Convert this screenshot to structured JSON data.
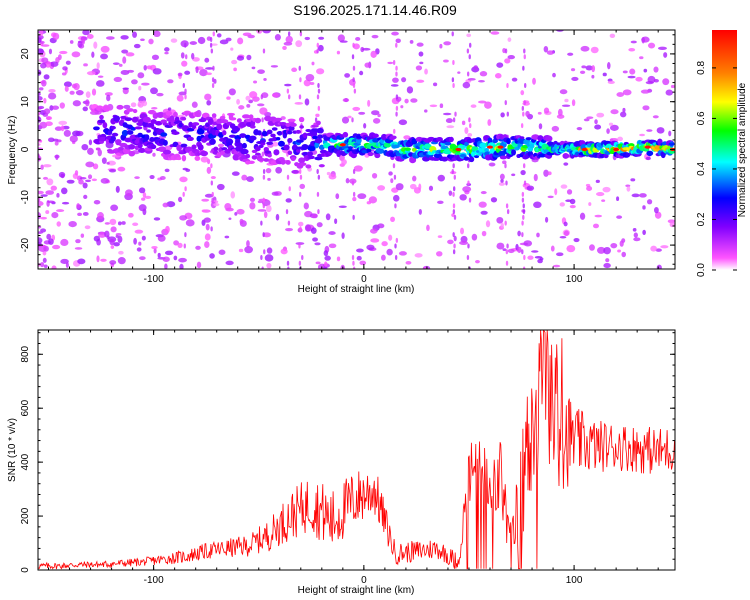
{
  "title": "S196.2025.171.14.46.R09",
  "chart_data": [
    {
      "type": "heatmap",
      "xlabel": "Height of straight line (km)",
      "ylabel": "Frequency (Hz)",
      "xlim": [
        -155,
        148
      ],
      "ylim": [
        -25,
        25
      ],
      "x_ticks": [
        -100,
        0,
        100
      ],
      "y_ticks": [
        -20,
        -10,
        0,
        10,
        20
      ],
      "colorbar": {
        "label": "Normalized spectral amplitude",
        "range": [
          0.0,
          0.95
        ],
        "ticks": [
          "0.0",
          "0.2",
          "0.4",
          "0.6",
          "0.8"
        ],
        "colors": [
          "#ffffff",
          "#ff55ff",
          "#8000ff",
          "#0000ff",
          "#00ffff",
          "#00ff00",
          "#ffff00",
          "#ff8000",
          "#ff0000"
        ]
      },
      "ridge": [
        {
          "x": -128,
          "f": 4,
          "amp": 0.35
        },
        {
          "x": -115,
          "f": 4,
          "amp": 0.45
        },
        {
          "x": -100,
          "f": 3,
          "amp": 0.4
        },
        {
          "x": -85,
          "f": 3,
          "amp": 0.45
        },
        {
          "x": -70,
          "f": 3,
          "amp": 0.4
        },
        {
          "x": -55,
          "f": 2,
          "amp": 0.45
        },
        {
          "x": -40,
          "f": 2,
          "amp": 0.45
        },
        {
          "x": -25,
          "f": 1,
          "amp": 0.5
        },
        {
          "x": -10,
          "f": 1,
          "amp": 0.6
        },
        {
          "x": 5,
          "f": 1,
          "amp": 0.55
        },
        {
          "x": 20,
          "f": 0,
          "amp": 0.6
        },
        {
          "x": 35,
          "f": 0,
          "amp": 0.6
        },
        {
          "x": 50,
          "f": 0,
          "amp": 0.65
        },
        {
          "x": 65,
          "f": 0.5,
          "amp": 0.7
        },
        {
          "x": 80,
          "f": 0.5,
          "amp": 0.6
        },
        {
          "x": 95,
          "f": 0,
          "amp": 0.5
        },
        {
          "x": 105,
          "f": 0,
          "amp": 0.75
        },
        {
          "x": 120,
          "f": 0,
          "amp": 0.8
        },
        {
          "x": 135,
          "f": 0.5,
          "amp": 0.75
        },
        {
          "x": 147,
          "f": 0,
          "amp": 0.85
        }
      ]
    },
    {
      "type": "line",
      "xlabel": "Height of straight line (km)",
      "ylabel": "SNR (10 * v/v)",
      "xlim": [
        -155,
        148
      ],
      "ylim": [
        0,
        890
      ],
      "x_ticks": [
        -100,
        0,
        100
      ],
      "y_ticks": [
        0,
        200,
        400,
        600,
        800
      ],
      "series": [
        {
          "color": "#ff0000",
          "x": [
            -155,
            -145,
            -135,
            -125,
            -115,
            -105,
            -95,
            -85,
            -75,
            -65,
            -55,
            -45,
            -35,
            -25,
            -15,
            -5,
            5,
            15,
            25,
            35,
            45,
            50,
            55,
            60,
            65,
            70,
            75,
            80,
            85,
            90,
            95,
            100,
            110,
            120,
            130,
            140,
            148
          ],
          "y": [
            15,
            15,
            20,
            20,
            25,
            30,
            40,
            50,
            70,
            80,
            90,
            130,
            200,
            250,
            180,
            260,
            300,
            60,
            70,
            80,
            30,
            350,
            420,
            250,
            350,
            80,
            300,
            550,
            700,
            620,
            500,
            480,
            460,
            460,
            450,
            440,
            450
          ],
          "amplitude": [
            12,
            12,
            12,
            12,
            15,
            15,
            20,
            25,
            30,
            35,
            40,
            60,
            90,
            110,
            120,
            110,
            100,
            40,
            40,
            40,
            30,
            120,
            130,
            150,
            150,
            80,
            200,
            300,
            330,
            300,
            220,
            130,
            100,
            90,
            90,
            90,
            90
          ]
        }
      ]
    }
  ]
}
